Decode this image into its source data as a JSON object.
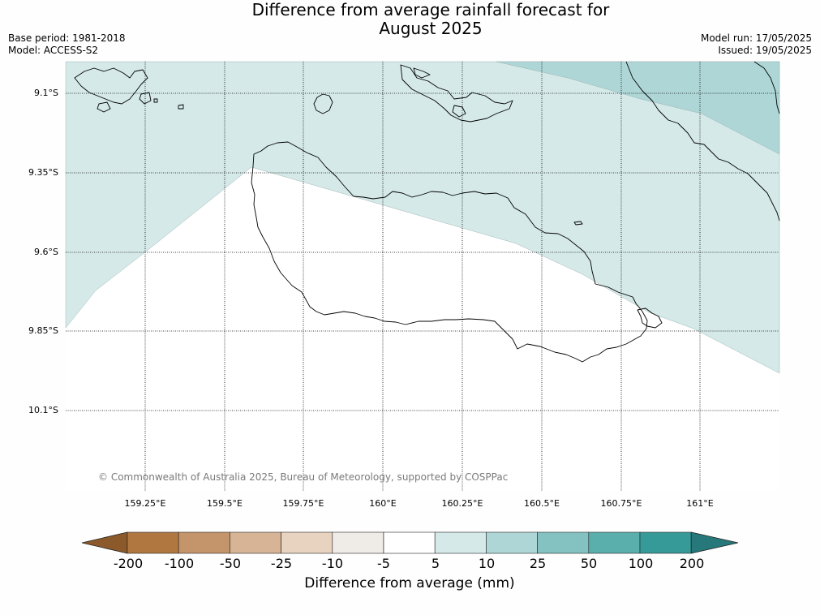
{
  "title_line1": "Difference from average rainfall forecast for",
  "title_line2": "August 2025",
  "base_period": "Base period: 1981-2018",
  "model": "Model: ACCESS-S2",
  "model_run": "Model run: 17/05/2025",
  "issued": "Issued: 19/05/2025",
  "latitude_labels": [
    "9.1°S",
    "9.35°S",
    "9.6°S",
    "9.85°S",
    "10.1°S"
  ],
  "longitude_labels": [
    "159.25°E",
    "159.5°E",
    "159.75°E",
    "160°E",
    "160.25°E",
    "160.5°E",
    "160.75°E",
    "161°E"
  ],
  "copyright": "© Commonwealth of Australia 2025, Bureau of Meteorology, supported by COSPPac",
  "colorbar": {
    "labels": [
      "-200",
      "-100",
      "-50",
      "-25",
      "-10",
      "-5",
      "5",
      "10",
      "25",
      "50",
      "100",
      "200"
    ],
    "colors": [
      "#8c5a2a",
      "#b07840",
      "#c4956a",
      "#d7b495",
      "#e7d3c0",
      "#efebe7",
      "#ffffff",
      "#d4e9e8",
      "#aed6d6",
      "#83c2c0",
      "#5aaeac",
      "#369a98",
      "#26787a"
    ],
    "title": "Difference from average (mm)"
  },
  "map_colors": {
    "light": "#d4e9e8",
    "medium": "#aed6d6",
    "blank": "#ffffff"
  }
}
